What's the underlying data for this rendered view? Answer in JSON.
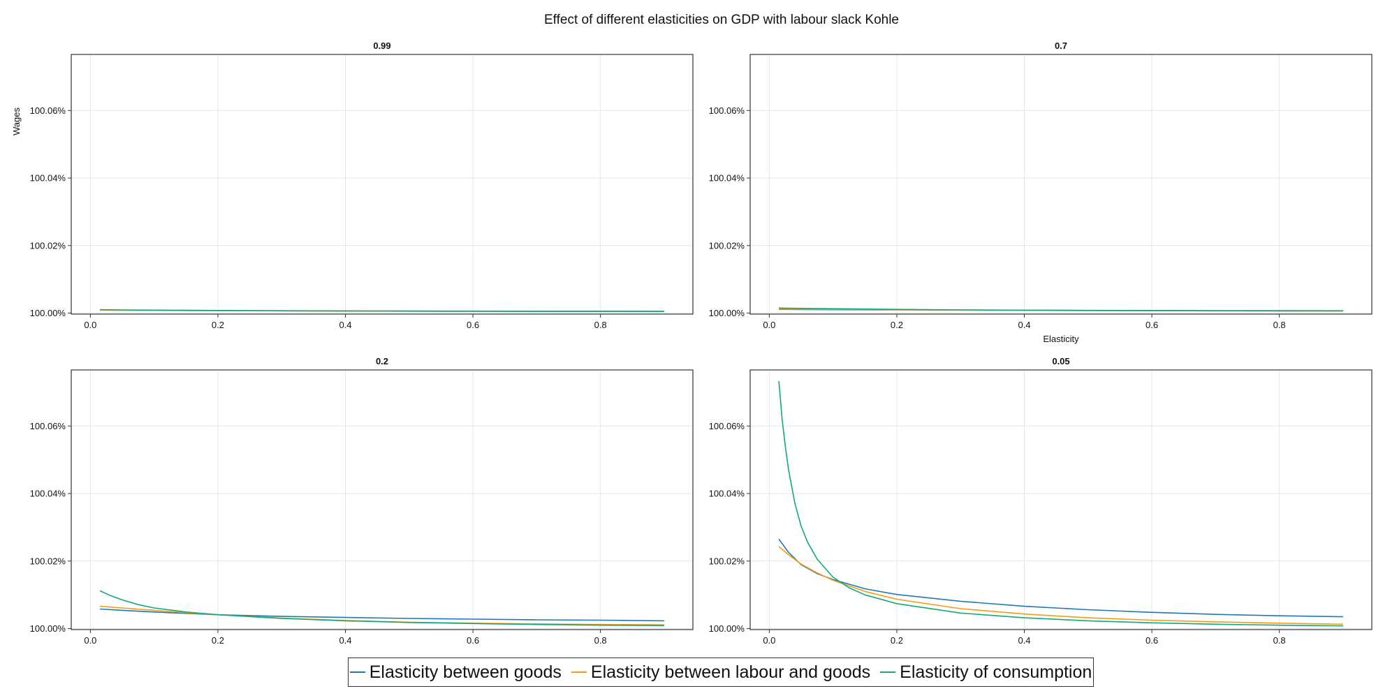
{
  "figure": {
    "title": "Effect of different elasticities on GDP with labour slack Kohle"
  },
  "colors": {
    "goods": "#1f77b4",
    "labour_goods": "#f39c12",
    "consumption": "#13a878",
    "grid": "#e6e6e6",
    "frame": "#333333"
  },
  "legend": [
    {
      "key": "goods",
      "label": "Elasticity between goods"
    },
    {
      "key": "labour_goods",
      "label": "Elasticity between labour and goods"
    },
    {
      "key": "consumption",
      "label": "Elasticity of consumption"
    }
  ],
  "chart_data": [
    {
      "type": "line",
      "title": "0.99",
      "xlabel": "",
      "ylabel": "Wages",
      "xlim": [
        -0.03,
        0.945
      ],
      "ylim": [
        99.9997,
        100.0766
      ],
      "xticks": [
        0.0,
        0.2,
        0.4,
        0.6,
        0.8
      ],
      "xtick_labels": [
        "0.0",
        "0.2",
        "0.4",
        "0.6",
        "0.8"
      ],
      "yticks": [
        100.0,
        100.02,
        100.04,
        100.06
      ],
      "ytick_labels": [
        "100.00%",
        "100.02%",
        "100.04%",
        "100.06%"
      ],
      "grid": true,
      "series": [
        {
          "key": "goods",
          "name": "Elasticity between goods",
          "x": [
            0.015,
            0.05,
            0.1,
            0.2,
            0.3,
            0.4,
            0.5,
            0.6,
            0.7,
            0.8,
            0.9
          ],
          "y": [
            100.0009,
            100.00085,
            100.0008,
            100.00075,
            100.0007,
            100.00065,
            100.0006,
            100.00058,
            100.00056,
            100.00054,
            100.00052
          ]
        },
        {
          "key": "labour_goods",
          "name": "Elasticity between labour and goods",
          "x": [
            0.015,
            0.05,
            0.1,
            0.2,
            0.3,
            0.4,
            0.5,
            0.6,
            0.7,
            0.8,
            0.9
          ],
          "y": [
            100.0009,
            100.00085,
            100.0008,
            100.00074,
            100.00068,
            100.00062,
            100.00058,
            100.00055,
            100.00053,
            100.00051,
            100.0005
          ]
        },
        {
          "key": "consumption",
          "name": "Elasticity of consumption",
          "x": [
            0.015,
            0.05,
            0.1,
            0.2,
            0.3,
            0.4,
            0.5,
            0.6,
            0.7,
            0.8,
            0.9
          ],
          "y": [
            100.001,
            100.00095,
            100.00088,
            100.00078,
            100.00068,
            100.0006,
            100.00056,
            100.00053,
            100.00051,
            100.0005,
            100.00049
          ]
        }
      ]
    },
    {
      "type": "line",
      "title": "0.7",
      "xlabel": "Elasticity",
      "ylabel": "",
      "xlim": [
        -0.03,
        0.945
      ],
      "ylim": [
        99.9997,
        100.0766
      ],
      "xticks": [
        0.0,
        0.2,
        0.4,
        0.6,
        0.8
      ],
      "xtick_labels": [
        "0.0",
        "0.2",
        "0.4",
        "0.6",
        "0.8"
      ],
      "yticks": [
        100.0,
        100.02,
        100.04,
        100.06
      ],
      "ytick_labels": [
        "100.00%",
        "100.02%",
        "100.04%",
        "100.06%"
      ],
      "grid": true,
      "series": [
        {
          "key": "goods",
          "name": "Elasticity between goods",
          "x": [
            0.015,
            0.05,
            0.1,
            0.2,
            0.3,
            0.4,
            0.5,
            0.6,
            0.7,
            0.8,
            0.9
          ],
          "y": [
            100.0011,
            100.00105,
            100.001,
            100.00095,
            100.0009,
            100.00085,
            100.0008,
            100.00077,
            100.00074,
            100.00072,
            100.0007
          ]
        },
        {
          "key": "labour_goods",
          "name": "Elasticity between labour and goods",
          "x": [
            0.015,
            0.05,
            0.1,
            0.2,
            0.3,
            0.4,
            0.5,
            0.6,
            0.7,
            0.8,
            0.9
          ],
          "y": [
            100.0012,
            100.00115,
            100.0011,
            100.001,
            100.0009,
            100.00082,
            100.00076,
            100.00072,
            100.00068,
            100.00065,
            100.00063
          ]
        },
        {
          "key": "consumption",
          "name": "Elasticity of consumption",
          "x": [
            0.015,
            0.05,
            0.1,
            0.2,
            0.3,
            0.4,
            0.5,
            0.6,
            0.7,
            0.8,
            0.9
          ],
          "y": [
            100.0015,
            100.0014,
            100.0013,
            100.0011,
            100.00095,
            100.00085,
            100.00078,
            100.00072,
            100.00068,
            100.00065,
            100.00062
          ]
        }
      ]
    },
    {
      "type": "line",
      "title": "0.2",
      "xlabel": "",
      "ylabel": "",
      "xlim": [
        -0.03,
        0.945
      ],
      "ylim": [
        99.9997,
        100.0766
      ],
      "xticks": [
        0.0,
        0.2,
        0.4,
        0.6,
        0.8
      ],
      "xtick_labels": [
        "0.0",
        "0.2",
        "0.4",
        "0.6",
        "0.8"
      ],
      "yticks": [
        100.0,
        100.02,
        100.04,
        100.06
      ],
      "ytick_labels": [
        "100.00%",
        "100.02%",
        "100.04%",
        "100.06%"
      ],
      "grid": true,
      "series": [
        {
          "key": "goods",
          "name": "Elasticity between goods",
          "x": [
            0.015,
            0.05,
            0.1,
            0.15,
            0.2,
            0.3,
            0.4,
            0.5,
            0.6,
            0.7,
            0.8,
            0.9
          ],
          "y": [
            100.0058,
            100.0054,
            100.0049,
            100.0045,
            100.0041,
            100.0036,
            100.0033,
            100.003,
            100.0028,
            100.0026,
            100.0025,
            100.0023
          ]
        },
        {
          "key": "labour_goods",
          "name": "Elasticity between labour and goods",
          "x": [
            0.015,
            0.05,
            0.1,
            0.15,
            0.2,
            0.3,
            0.4,
            0.5,
            0.6,
            0.7,
            0.8,
            0.9
          ],
          "y": [
            100.0066,
            100.0061,
            100.0054,
            100.0047,
            100.0041,
            100.0031,
            100.0024,
            100.0019,
            100.0016,
            100.0014,
            100.0012,
            100.0011
          ]
        },
        {
          "key": "consumption",
          "name": "Elasticity of consumption",
          "x": [
            0.015,
            0.03,
            0.05,
            0.075,
            0.1,
            0.15,
            0.2,
            0.3,
            0.4,
            0.5,
            0.6,
            0.7,
            0.8,
            0.9
          ],
          "y": [
            100.0112,
            100.0099,
            100.0085,
            100.0071,
            100.0061,
            100.0049,
            100.0041,
            100.003,
            100.0023,
            100.0018,
            100.0015,
            100.0012,
            100.001,
            100.0009
          ]
        }
      ]
    },
    {
      "type": "line",
      "title": "0.05",
      "xlabel": "",
      "ylabel": "",
      "xlim": [
        -0.03,
        0.945
      ],
      "ylim": [
        99.9997,
        100.0766
      ],
      "xticks": [
        0.0,
        0.2,
        0.4,
        0.6,
        0.8
      ],
      "xtick_labels": [
        "0.0",
        "0.2",
        "0.4",
        "0.6",
        "0.8"
      ],
      "yticks": [
        100.0,
        100.02,
        100.04,
        100.06
      ],
      "ytick_labels": [
        "100.00%",
        "100.02%",
        "100.04%",
        "100.06%"
      ],
      "grid": true,
      "series": [
        {
          "key": "goods",
          "name": "Elasticity between goods",
          "x": [
            0.015,
            0.03,
            0.05,
            0.075,
            0.1,
            0.15,
            0.2,
            0.3,
            0.4,
            0.5,
            0.6,
            0.7,
            0.8,
            0.9
          ],
          "y": [
            100.0265,
            100.0226,
            100.0189,
            100.0163,
            100.0145,
            100.0118,
            100.0101,
            100.0081,
            100.0066,
            100.0056,
            100.0048,
            100.0042,
            100.0038,
            100.0035
          ]
        },
        {
          "key": "labour_goods",
          "name": "Elasticity between labour and goods",
          "x": [
            0.015,
            0.03,
            0.05,
            0.075,
            0.1,
            0.15,
            0.2,
            0.3,
            0.4,
            0.5,
            0.6,
            0.7,
            0.8,
            0.9
          ],
          "y": [
            100.0243,
            100.0219,
            100.0191,
            100.0165,
            100.0143,
            100.011,
            100.0087,
            100.0059,
            100.0043,
            100.0032,
            100.0025,
            100.002,
            100.0016,
            100.0013
          ]
        },
        {
          "key": "consumption",
          "name": "Elasticity of consumption",
          "x": [
            0.015,
            0.02,
            0.025,
            0.03,
            0.04,
            0.05,
            0.06,
            0.075,
            0.1,
            0.125,
            0.15,
            0.2,
            0.3,
            0.4,
            0.5,
            0.6,
            0.7,
            0.8,
            0.9
          ],
          "y": [
            100.0733,
            100.0623,
            100.0542,
            100.0472,
            100.0372,
            100.0303,
            100.0256,
            100.0206,
            100.0152,
            100.0121,
            100.01,
            100.0074,
            100.0046,
            100.0032,
            100.0023,
            100.0017,
            100.0013,
            100.001,
            100.0008
          ]
        }
      ]
    }
  ]
}
